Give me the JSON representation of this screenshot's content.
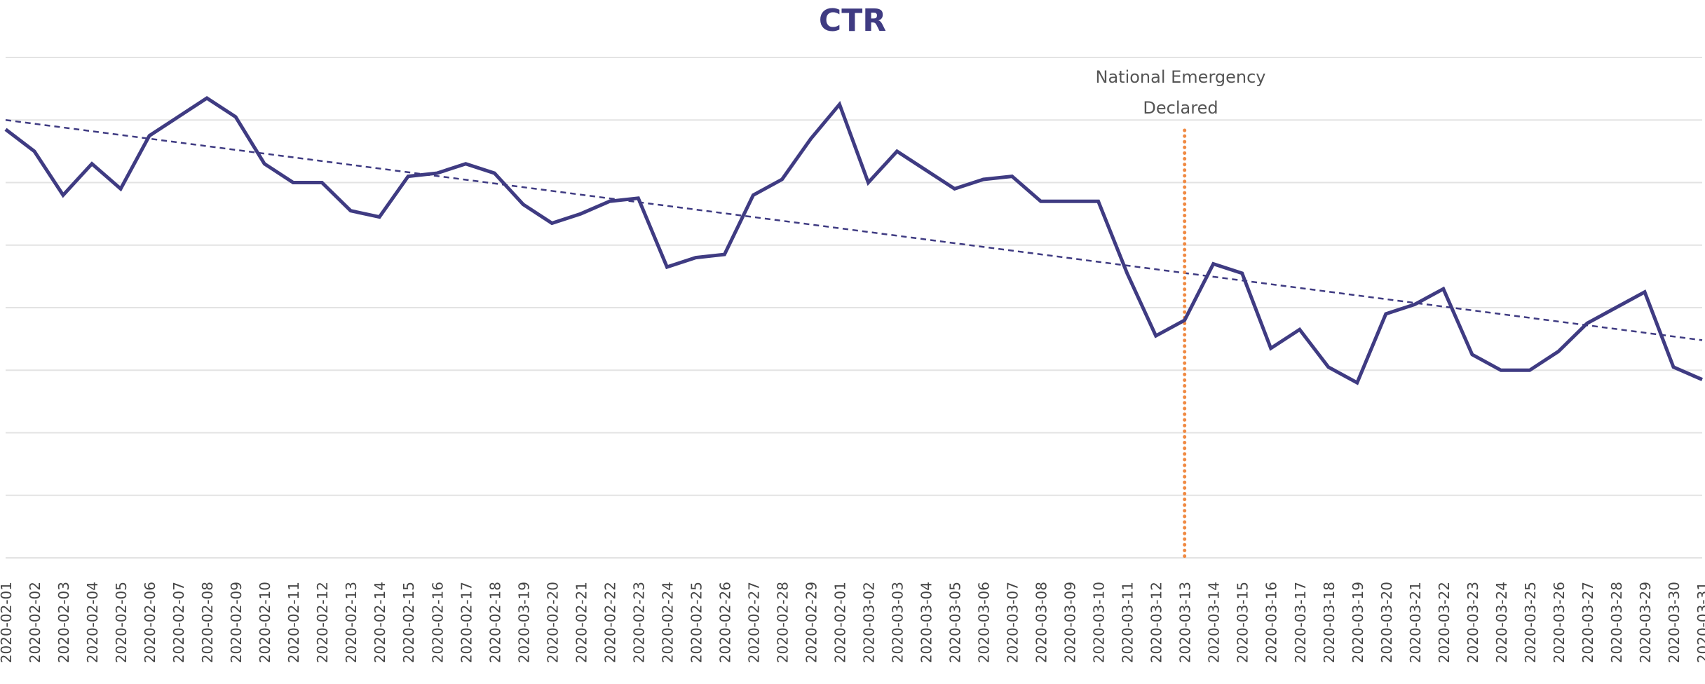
{
  "colors": {
    "series": "#3f3b82",
    "trend": "#3f3b82",
    "event_line": "#f08a43",
    "grid": "#e3e3e3",
    "tick_text": "#444444",
    "title": "#3f3b82"
  },
  "chart_data": {
    "type": "line",
    "title": "CTR",
    "xlabel": "",
    "ylabel": "",
    "grid": true,
    "y_axis_labels_visible": false,
    "ylim": [
      0,
      8
    ],
    "categories": [
      "2020-02-01",
      "2020-02-02",
      "2020-02-03",
      "2020-02-04",
      "2020-02-05",
      "2020-02-06",
      "2020-02-07",
      "2020-02-08",
      "2020-02-09",
      "2020-02-10",
      "2020-02-11",
      "2020-02-12",
      "2020-02-13",
      "2020-02-14",
      "2020-02-15",
      "2020-02-16",
      "2020-02-17",
      "2020-02-18",
      "2020-03-19",
      "2020-02-20",
      "2020-02-21",
      "2020-02-22",
      "2020-02-23",
      "2020-02-24",
      "2020-02-25",
      "2020-02-26",
      "2020-02-27",
      "2020-02-28",
      "2020-02-29",
      "2020-02-01",
      "2020-03-02",
      "2020-03-03",
      "2020-03-04",
      "2020-03-05",
      "2020-03-06",
      "2020-03-07",
      "2020-03-08",
      "2020-03-09",
      "2020-03-10",
      "2020-03-11",
      "2020-03-12",
      "2020-03-13",
      "2020-03-14",
      "2020-03-15",
      "2020-03-16",
      "2020-03-17",
      "2020-03-18",
      "2020-03-19",
      "2020-03-20",
      "2020-03-21",
      "2020-03-22",
      "2020-03-23",
      "2020-03-24",
      "2020-03-25",
      "2020-03-26",
      "2020-03-27",
      "2020-03-28",
      "2020-03-29",
      "2020-03-30",
      "2020-03-31"
    ],
    "series": [
      {
        "values": [
          6.85,
          6.5,
          5.8,
          6.3,
          5.9,
          6.75,
          7.05,
          7.35,
          7.05,
          6.3,
          6.0,
          6.0,
          5.55,
          5.45,
          6.1,
          6.15,
          6.3,
          6.15,
          5.65,
          5.35,
          5.5,
          5.7,
          5.75,
          4.65,
          4.8,
          4.85,
          5.8,
          6.05,
          6.7,
          7.25,
          6.0,
          6.5,
          6.2,
          5.9,
          6.05,
          6.1,
          5.7,
          5.7,
          5.7,
          4.55,
          3.55,
          3.8,
          4.7,
          4.55,
          3.35,
          3.65,
          3.05,
          2.8,
          3.9,
          4.05,
          4.3,
          3.25,
          3.0,
          3.0,
          3.3,
          3.75,
          4.0,
          4.25,
          3.05,
          2.85
        ]
      }
    ],
    "trendline": {
      "style": "dashed",
      "start": 7.0,
      "end": 3.48
    },
    "annotations": [
      {
        "x": "2020-03-13",
        "lines": [
          "National Emergency",
          "Declared"
        ],
        "style": "dotted-vertical"
      }
    ]
  }
}
